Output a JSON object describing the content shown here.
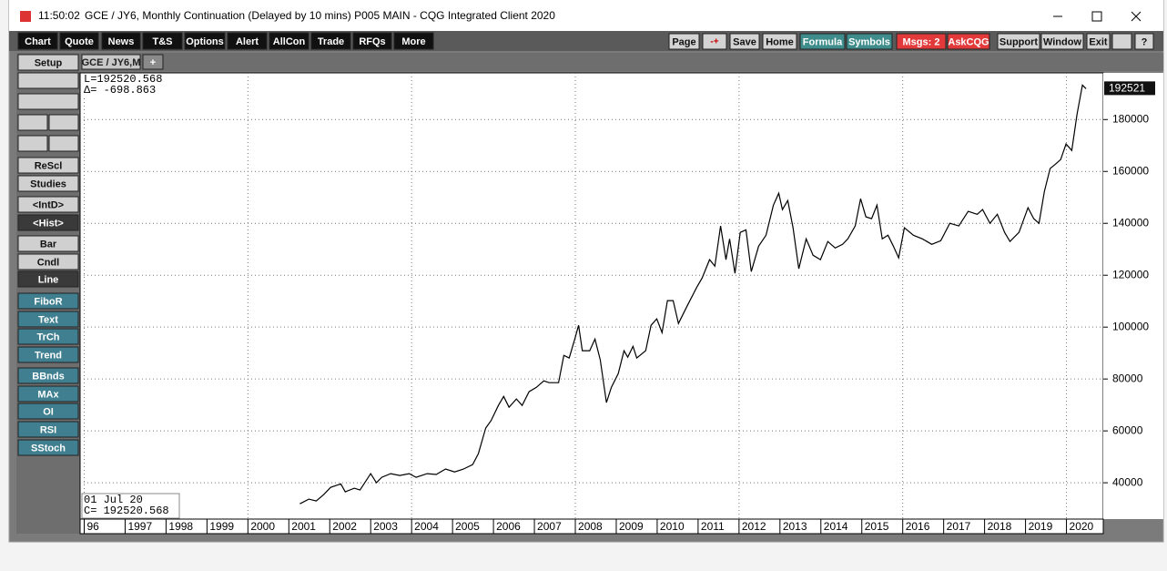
{
  "window": {
    "time": "11:50:02",
    "title": "GCE / JY6, Monthly Continuation (Delayed by 10 mins)   P005 MAIN - CQG Integrated Client 2020"
  },
  "toolbar": {
    "left": [
      "Chart",
      "Quote",
      "News",
      "T&S",
      "Options",
      "Alert",
      "AllCon",
      "Trade",
      "RFQs",
      "More"
    ],
    "right": [
      "Page",
      "Save",
      "Home",
      "Formula",
      "Symbols",
      "Msgs: 2",
      "AskCQG",
      "Support",
      "Window",
      "Exit",
      "?"
    ]
  },
  "tabs": [
    "GCE / JY6,M",
    "+"
  ],
  "sidebar": [
    "Setup",
    "ReScl",
    "Studies",
    "<IntD>",
    "<Hist>",
    "Bar",
    "Cndl",
    "Line",
    "FiboR",
    "Text",
    "TrCh",
    "Trend",
    "BBnds",
    "MAx",
    "OI",
    "RSI",
    "SStoch"
  ],
  "chart_data": {
    "type": "line",
    "color": "#000000",
    "info": {
      "last": "L=192520.568",
      "delta": "Δ=  -698.863",
      "date": "01 Jul 20",
      "close": "C=  192520.568"
    },
    "price_label": "192521",
    "x": [
      2001.27,
      2001.49,
      2001.67,
      2001.85,
      2002.02,
      2002.27,
      2002.38,
      2002.6,
      2002.74,
      2003.0,
      2003.14,
      2003.27,
      2003.49,
      2003.71,
      2003.94,
      2004.11,
      2004.38,
      2004.6,
      2004.83,
      2005.05,
      2005.27,
      2005.49,
      2005.63,
      2005.81,
      2005.94,
      2006.12,
      2006.25,
      2006.38,
      2006.56,
      2006.7,
      2006.87,
      2007.05,
      2007.23,
      2007.36,
      2007.59,
      2007.72,
      2007.85,
      2008.0,
      2008.08,
      2008.17,
      2008.35,
      2008.48,
      2008.61,
      2008.76,
      2008.88,
      2009.05,
      2009.19,
      2009.28,
      2009.41,
      2009.5,
      2009.72,
      2009.85,
      2009.99,
      2010.12,
      2010.25,
      2010.39,
      2010.52,
      2010.74,
      2010.97,
      2011.1,
      2011.28,
      2011.41,
      2011.55,
      2011.68,
      2011.77,
      2011.9,
      2012.03,
      2012.17,
      2012.3,
      2012.48,
      2012.66,
      2012.84,
      2012.97,
      2013.06,
      2013.19,
      2013.32,
      2013.46,
      2013.64,
      2013.81,
      2013.99,
      2014.17,
      2014.35,
      2014.53,
      2014.66,
      2014.84,
      2014.97,
      2015.1,
      2015.24,
      2015.37,
      2015.5,
      2015.64,
      2015.77,
      2015.9,
      2016.04,
      2016.26,
      2016.48,
      2016.71,
      2016.93,
      2017.15,
      2017.37,
      2017.6,
      2017.82,
      2017.95,
      2018.13,
      2018.31,
      2018.49,
      2018.62,
      2018.84,
      2019.06,
      2019.2,
      2019.33,
      2019.46,
      2019.6,
      2019.73,
      2019.86,
      2019.99,
      2020.13,
      2020.26,
      2020.39,
      2020.48
    ],
    "values": [
      31900,
      33700,
      33000,
      35400,
      38200,
      39600,
      36500,
      37900,
      37200,
      43500,
      40000,
      42100,
      43500,
      42800,
      43500,
      42100,
      43500,
      43200,
      45300,
      44200,
      45300,
      47000,
      51200,
      61100,
      63900,
      69800,
      73300,
      69100,
      72300,
      69800,
      75100,
      76800,
      79300,
      78600,
      78600,
      89100,
      88100,
      96100,
      100700,
      90900,
      90900,
      95400,
      87400,
      70900,
      76800,
      82100,
      90900,
      88400,
      92600,
      88100,
      90900,
      100700,
      103200,
      97900,
      110200,
      110200,
      101400,
      108400,
      115400,
      119000,
      126000,
      123500,
      139000,
      126000,
      134000,
      120700,
      136500,
      137500,
      121400,
      131200,
      135400,
      147000,
      151600,
      145300,
      148800,
      138300,
      122500,
      134000,
      127700,
      126000,
      133000,
      130500,
      131900,
      134000,
      139000,
      149500,
      142500,
      141800,
      147000,
      134000,
      135400,
      131200,
      126700,
      138300,
      135400,
      134000,
      131900,
      133300,
      140000,
      139000,
      144600,
      143500,
      145300,
      140000,
      143500,
      136500,
      133000,
      136500,
      146000,
      141800,
      140000,
      152300,
      161100,
      162800,
      164600,
      170600,
      168100,
      182100,
      193300,
      191900
    ],
    "xlim": [
      1995.9,
      2020.9
    ],
    "xticks": [
      {
        "value": 1996,
        "label": "96"
      },
      1997,
      1998,
      1999,
      2000,
      2001,
      2002,
      2003,
      2004,
      2005,
      2006,
      2007,
      2008,
      2009,
      2010,
      2011,
      2012,
      2013,
      2014,
      2015,
      2016,
      2017,
      2018,
      2019,
      2020
    ],
    "ylim": [
      26000,
      198000
    ],
    "yticks": [
      40000,
      60000,
      80000,
      100000,
      120000,
      140000,
      160000,
      180000
    ],
    "grid": true
  }
}
